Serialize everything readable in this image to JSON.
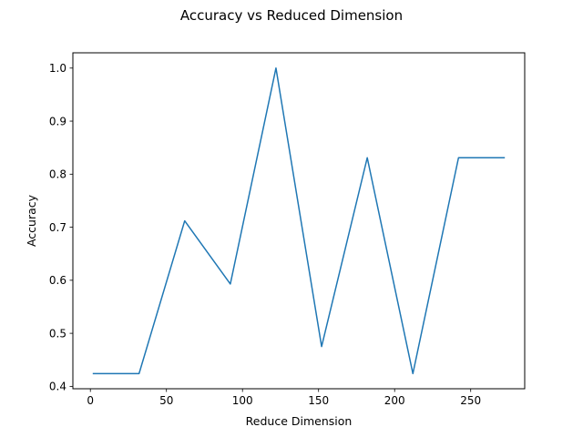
{
  "chart_data": {
    "type": "line",
    "title": "Accuracy vs Reduced Dimension",
    "xlabel": "Reduce Dimension",
    "ylabel": "Accuracy",
    "xlim": [
      -11.5,
      285.5
    ],
    "ylim": [
      0.3955,
      1.0288
    ],
    "xticks": [
      0,
      50,
      100,
      150,
      200,
      250
    ],
    "yticks": [
      0.4,
      0.5,
      0.6,
      0.7,
      0.8,
      0.9,
      1.0
    ],
    "ytick_labels": [
      "0.4",
      "0.5",
      "0.6",
      "0.7",
      "0.8",
      "0.9",
      "1.0"
    ],
    "grid": false,
    "series": [
      {
        "color": "#1f77b4",
        "x": [
          2,
          32,
          62,
          92,
          122,
          152,
          182,
          212,
          242,
          272
        ],
        "y": [
          0.424,
          0.424,
          0.712,
          0.593,
          1.0,
          0.475,
          0.831,
          0.424,
          0.831,
          0.831
        ]
      }
    ]
  }
}
